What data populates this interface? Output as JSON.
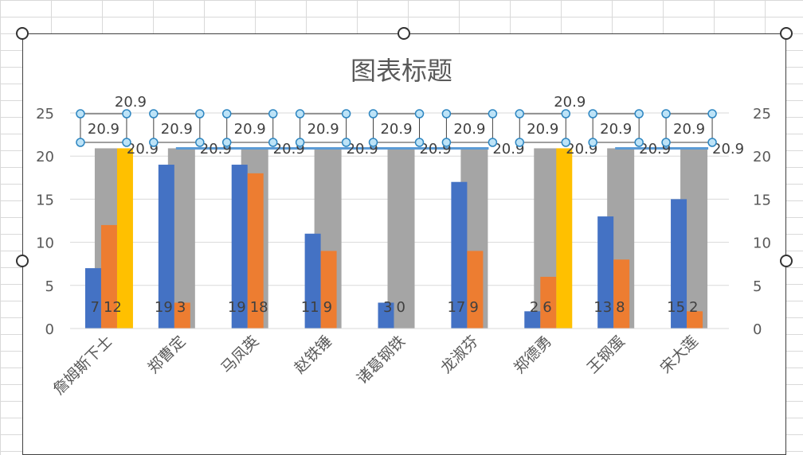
{
  "chart_data": {
    "type": "bar",
    "title": "图表标题",
    "categories": [
      "詹姆斯下士",
      "郑曹定",
      "马凤英",
      "赵铁锤",
      "诸葛钢铁",
      "龙淑芬",
      "郑德勇",
      "王钢蛋",
      "宋大莲"
    ],
    "series": [
      {
        "values": [
          7,
          19,
          19,
          11,
          3,
          17,
          2,
          13,
          15
        ],
        "color": "#4472c4"
      },
      {
        "values": [
          12,
          3,
          18,
          9,
          0,
          9,
          6,
          8,
          2
        ],
        "color": "#ed7d31"
      },
      {
        "values": [
          20.9,
          20.9,
          20.9,
          20.9,
          20.9,
          20.9,
          20.9,
          20.9,
          20.9
        ],
        "color": "#a5a5a5"
      },
      {
        "values": [
          20.9,
          null,
          null,
          null,
          null,
          null,
          20.9,
          null,
          null
        ],
        "color": "#ffc000"
      },
      {
        "type": "line",
        "values": [
          20.9,
          20.9,
          20.9,
          20.9,
          20.9,
          20.9,
          20.9,
          20.9,
          20.9
        ],
        "color": "#5b9bd5"
      }
    ],
    "ylim": [
      0,
      25
    ],
    "yticks": [
      "0",
      "5",
      "10",
      "15",
      "20",
      "25"
    ],
    "secondary_yticks": [
      "0",
      "5",
      "10",
      "15",
      "20",
      "25"
    ],
    "grid": true,
    "legend": "none",
    "selected_labels": "gray series data labels"
  }
}
